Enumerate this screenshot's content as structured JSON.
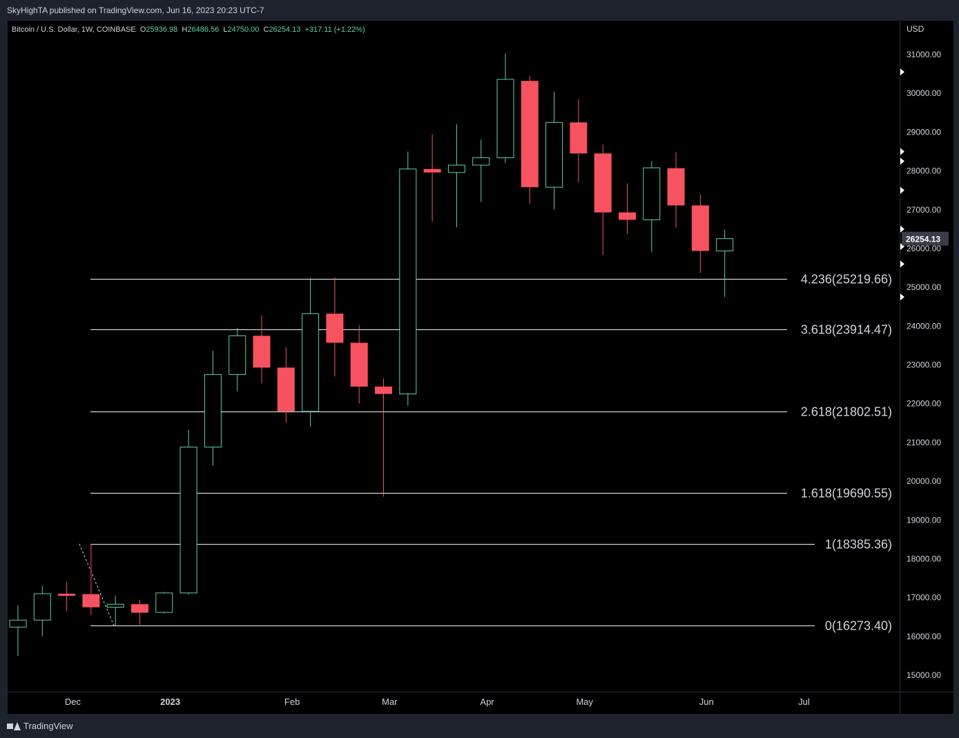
{
  "header": {
    "published": "SkyHighTA published on TradingView.com, Jun 16, 2023 20:23 UTC-7"
  },
  "legend": {
    "symbol": "Bitcoin / U.S. Dollar, 1W, COINBASE",
    "o_label": "O",
    "o_value": "25936.98",
    "h_label": "H",
    "h_value": "26486.56",
    "l_label": "L",
    "l_value": "24750.00",
    "c_label": "C",
    "c_value": "26254.13",
    "change": "+317.11 (+1.22%)"
  },
  "footer": {
    "brand": "TradingView",
    "logo_icon": "tradingview-logo-icon"
  },
  "colors": {
    "up": "#5fd3a2",
    "down": "#f7525f",
    "background": "#000000",
    "frame": "#1e222d",
    "text": "#d1d4dc",
    "fib_line": "#d1d4dc",
    "legend_value": "#5fd3a2"
  },
  "chart_data": {
    "type": "candlestick",
    "timeframe": "1W",
    "y_axis_label": "USD",
    "ylim": [
      14200,
      31800
    ],
    "y_ticks": [
      "15000.00",
      "16000.00",
      "17000.00",
      "18000.00",
      "19000.00",
      "20000.00",
      "21000.00",
      "22000.00",
      "23000.00",
      "24000.00",
      "25000.00",
      "26000.00",
      "27000.00",
      "28000.00",
      "29000.00",
      "30000.00",
      "31000.00"
    ],
    "x_ticks": [
      {
        "label": "Dec",
        "index": 2.25
      },
      {
        "label": "2023",
        "index": 6.25
      },
      {
        "label": "Feb",
        "index": 11.25
      },
      {
        "label": "Mar",
        "index": 15.25
      },
      {
        "label": "Apr",
        "index": 19.25
      },
      {
        "label": "May",
        "index": 23.25
      },
      {
        "label": "Jun",
        "index": 28.25
      },
      {
        "label": "Jul",
        "index": 32.25
      }
    ],
    "x_bold_tick": "2023",
    "candles": [
      {
        "o": 16240,
        "h": 16800,
        "l": 15500,
        "c": 16420
      },
      {
        "o": 16420,
        "h": 17300,
        "l": 16000,
        "c": 17100
      },
      {
        "o": 17100,
        "h": 17400,
        "l": 16650,
        "c": 17090
      },
      {
        "o": 17090,
        "h": 18385,
        "l": 16550,
        "c": 16750
      },
      {
        "o": 16750,
        "h": 17050,
        "l": 16273,
        "c": 16830
      },
      {
        "o": 16830,
        "h": 16940,
        "l": 16300,
        "c": 16610
      },
      {
        "o": 16620,
        "h": 17150,
        "l": 16590,
        "c": 17120
      },
      {
        "o": 17120,
        "h": 21330,
        "l": 17080,
        "c": 20880
      },
      {
        "o": 20880,
        "h": 23370,
        "l": 20400,
        "c": 22750
      },
      {
        "o": 22750,
        "h": 23950,
        "l": 22320,
        "c": 23750
      },
      {
        "o": 23750,
        "h": 24280,
        "l": 22520,
        "c": 22930
      },
      {
        "o": 22930,
        "h": 23450,
        "l": 21500,
        "c": 21802
      },
      {
        "o": 21802,
        "h": 25240,
        "l": 21400,
        "c": 24320
      },
      {
        "o": 24320,
        "h": 25260,
        "l": 22700,
        "c": 23570
      },
      {
        "o": 23570,
        "h": 24020,
        "l": 22000,
        "c": 22440
      },
      {
        "o": 22440,
        "h": 22650,
        "l": 19600,
        "c": 22250
      },
      {
        "o": 22250,
        "h": 28500,
        "l": 21950,
        "c": 28050
      },
      {
        "o": 28050,
        "h": 28950,
        "l": 26700,
        "c": 27960
      },
      {
        "o": 27960,
        "h": 29200,
        "l": 26550,
        "c": 28150
      },
      {
        "o": 28150,
        "h": 28810,
        "l": 27200,
        "c": 28340
      },
      {
        "o": 28340,
        "h": 31030,
        "l": 28200,
        "c": 30360
      },
      {
        "o": 30320,
        "h": 30450,
        "l": 27150,
        "c": 27580
      },
      {
        "o": 27580,
        "h": 30040,
        "l": 27000,
        "c": 29250
      },
      {
        "o": 29250,
        "h": 29850,
        "l": 27700,
        "c": 28450
      },
      {
        "o": 28450,
        "h": 28680,
        "l": 25830,
        "c": 26930
      },
      {
        "o": 26930,
        "h": 27680,
        "l": 26380,
        "c": 26740
      },
      {
        "o": 26740,
        "h": 28250,
        "l": 25900,
        "c": 28080
      },
      {
        "o": 28070,
        "h": 28480,
        "l": 26540,
        "c": 27110
      },
      {
        "o": 27110,
        "h": 27400,
        "l": 25370,
        "c": 25936
      },
      {
        "o": 25936.98,
        "h": 26486.56,
        "l": 24750.0,
        "c": 26254.13
      }
    ],
    "fib_levels": [
      {
        "label": "4.236(25219.66)",
        "value": 25219.66
      },
      {
        "label": "3.618(23914.47)",
        "value": 23914.47
      },
      {
        "label": "2.618(21802.51)",
        "value": 21802.51
      },
      {
        "label": "1.618(19690.55)",
        "value": 19690.55
      },
      {
        "label": "1(18385.36)",
        "value": 18385.36
      },
      {
        "label": "0(16273.40)",
        "value": 16273.4
      }
    ],
    "trend_line": {
      "from_index": 3,
      "from_value": 18385.36,
      "to_index": 4,
      "to_value": 16273.4
    },
    "last_price": "26254.13",
    "alert_markers": [
      30550,
      28500,
      28250,
      27500,
      26500,
      26050,
      25600,
      24750
    ]
  }
}
